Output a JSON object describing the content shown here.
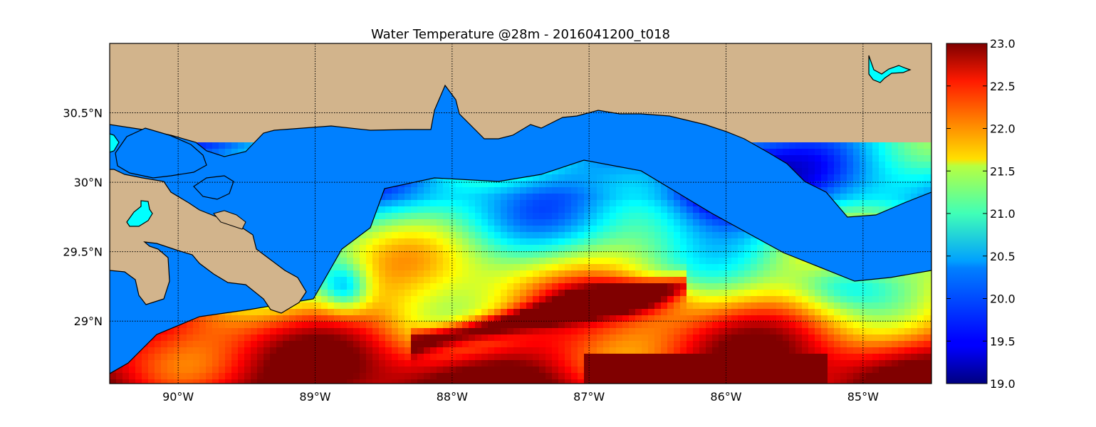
{
  "title": "Water Temperature @28m - 2016041200_t018",
  "map": {
    "lon_range": [
      -90.5,
      -84.5
    ],
    "lat_range": [
      28.55,
      31.0
    ],
    "x_ticks": [
      {
        "lon": -90,
        "label": "90°W"
      },
      {
        "lon": -89,
        "label": "89°W"
      },
      {
        "lon": -88,
        "label": "88°W"
      },
      {
        "lon": -87,
        "label": "87°W"
      },
      {
        "lon": -86,
        "label": "86°W"
      },
      {
        "lon": -85,
        "label": "85°W"
      }
    ],
    "y_ticks": [
      {
        "lat": 30.5,
        "label": "30.5°N"
      },
      {
        "lat": 30.0,
        "label": "30°N"
      },
      {
        "lat": 29.5,
        "label": "29.5°N"
      },
      {
        "lat": 29.0,
        "label": "29°N"
      }
    ],
    "grid": "dotted",
    "land_color": "#d2b48c",
    "coastal_water_color": "#0080ff",
    "lake_color": "#00ffff",
    "colormap": "jet"
  },
  "colorbar": {
    "min": 19.0,
    "max": 23.0,
    "ticks": [
      "19.0",
      "19.5",
      "20.0",
      "20.5",
      "21.0",
      "21.5",
      "22.0",
      "22.5",
      "23.0"
    ]
  }
}
